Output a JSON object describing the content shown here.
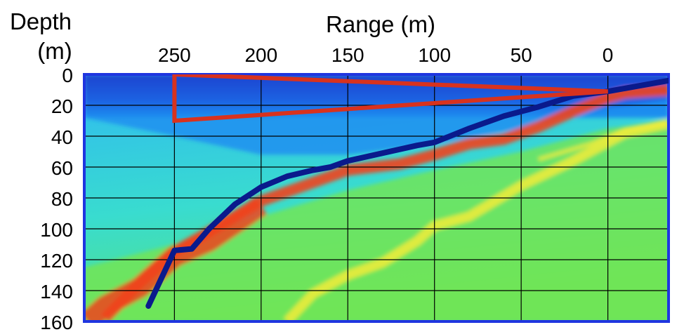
{
  "chart_data": {
    "type": "heatmap",
    "title": "",
    "xlabel": "Range (m)",
    "ylabel_lines": [
      "Depth",
      "(m)"
    ],
    "x_ticks": [
      250,
      200,
      150,
      100,
      50,
      0
    ],
    "y_ticks": [
      0,
      20,
      40,
      60,
      80,
      100,
      120,
      140,
      160
    ],
    "x_tick_labels": [
      "250",
      "200",
      "150",
      "100",
      "50",
      "0"
    ],
    "y_tick_labels": [
      "0",
      "20",
      "40",
      "60",
      "80",
      "100",
      "120",
      "140",
      "160"
    ],
    "xlim": [
      -35,
      302
    ],
    "ylim": [
      0,
      160
    ],
    "x_reversed": true,
    "grid": true,
    "colors": {
      "surface": "#1b4fd8",
      "water": "#1f8ff0",
      "shallow": "#2ec5ee",
      "background": "#3ae3b4",
      "sediment": "#78e64a",
      "yellow": "#f2ec3a",
      "reflector": "#f0441e",
      "track": "#0a1a8c",
      "wedge": "#d8321e",
      "grid": "#000000"
    },
    "series": [
      {
        "name": "track",
        "x": [
          -35,
          -25,
          -10,
          0,
          20,
          40,
          60,
          80,
          100,
          110,
          130,
          150,
          160,
          170,
          185,
          200,
          215,
          230,
          240,
          250,
          265
        ],
        "y": [
          4,
          6,
          9,
          11,
          14,
          21,
          27,
          35,
          44,
          46,
          51,
          56,
          60,
          62,
          66,
          73,
          84,
          100,
          113,
          114,
          150
        ]
      },
      {
        "name": "red-wedge",
        "x": [
          250,
          250,
          0,
          250
        ],
        "y": [
          0,
          30,
          11,
          0
        ]
      }
    ]
  }
}
